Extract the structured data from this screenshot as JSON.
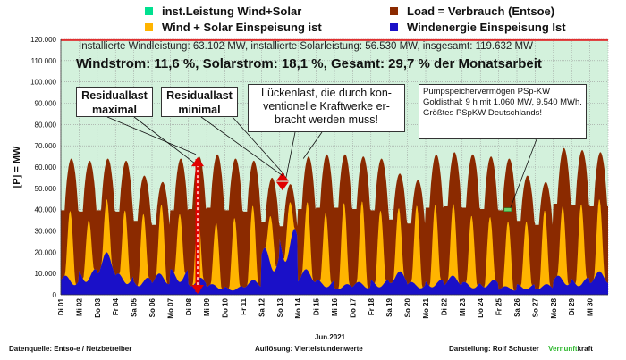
{
  "legend": {
    "items": [
      {
        "label": "inst.Leistung Wind+Solar",
        "color": "#00e090"
      },
      {
        "label": "Load =  Verbrauch (Entsoe)",
        "color": "#8b2a00"
      },
      {
        "label": "Wind + Solar Einspeisung ist",
        "color": "#ffb400"
      },
      {
        "label": "Windenergie Einspeisung Ist",
        "color": "#1a10c8"
      }
    ]
  },
  "header": {
    "line1": "Installierte Windleistung: 63.102 MW, installierte Solarleistung: 56.530 MW, insgesamt: 119.632 MW",
    "line2": "Windstrom: 11,6 %, Solarstrom: 18,1 %, Gesamt: 29,7 % der Monatsarbeit"
  },
  "annotations": {
    "residual_max": "Residuallast maximal",
    "residual_min": "Residuallast minimal",
    "lueckenlast": "Lückenlast, die durch kon-ventionelle Kraftwerke er-bracht werden muss!",
    "psp": "Pumpspeichervermögen PSp-KW Goldisthal: 9 h mit 1.060 MW, 9.540 MWh. Größtes PSpKW Deutschlands!"
  },
  "footer": {
    "source": "Datenquelle:  Entso-e  / Netzbetreiber",
    "resolution": "Auflösung: Viertelstundenwerte",
    "author": "Darstellung:  Rolf Schuster",
    "brand_a": "Vernunft",
    "brand_b": "kraft",
    "brand_color": "#2eb82e"
  },
  "chart_data": {
    "type": "area",
    "title": "",
    "ylabel": "[P] = MW",
    "xlabel": "Jun.2021",
    "ylim": [
      0,
      120000
    ],
    "yticks": [
      0,
      10000,
      20000,
      30000,
      40000,
      50000,
      60000,
      70000,
      80000,
      90000,
      100000,
      110000,
      120000
    ],
    "ytick_labels": [
      "0",
      "10.000",
      "20.000",
      "30.000",
      "40.000",
      "50.000",
      "60.000",
      "70.000",
      "80.000",
      "90.000",
      "100.000",
      "110.000",
      "120.000"
    ],
    "x_ticks": [
      "Di 01",
      "Mi 02",
      "Do 03",
      "Fr 04",
      "Sa 05",
      "So 06",
      "Mo 07",
      "Di 08",
      "Mi 09",
      "Do 10",
      "Fr 11",
      "Sa 12",
      "So 13",
      "Mo 14",
      "Di 15",
      "Mi 16",
      "Do 17",
      "Fr 18",
      "Sa 19",
      "So 20",
      "Mo 21",
      "Di 22",
      "Mi 23",
      "Do 24",
      "Fr 25",
      "Sa 26",
      "So 27",
      "Mo 28",
      "Di 29",
      "Mi 30"
    ],
    "x": [
      "01",
      "02",
      "03",
      "04",
      "05",
      "06",
      "07",
      "08",
      "09",
      "10",
      "11",
      "12",
      "13",
      "14",
      "15",
      "16",
      "17",
      "18",
      "19",
      "20",
      "21",
      "22",
      "23",
      "24",
      "25",
      "26",
      "27",
      "28",
      "29",
      "30"
    ],
    "grid": true,
    "series": [
      {
        "name": "inst.Leistung Wind+Solar",
        "values": [
          119632,
          119632,
          119632,
          119632,
          119632,
          119632,
          119632,
          119632,
          119632,
          119632,
          119632,
          119632,
          119632,
          119632,
          119632,
          119632,
          119632,
          119632,
          119632,
          119632,
          119632,
          119632,
          119632,
          119632,
          119632,
          119632,
          119632,
          119632,
          119632,
          119632
        ]
      },
      {
        "name": "Load =  Verbrauch (Entsoe)",
        "values": [
          64000,
          63000,
          64000,
          63000,
          56000,
          53000,
          64000,
          65000,
          66000,
          64000,
          63000,
          55000,
          52000,
          65000,
          66000,
          66000,
          65000,
          64000,
          57000,
          54000,
          66000,
          67000,
          66000,
          65000,
          64000,
          56000,
          53000,
          69000,
          68000,
          67000
        ]
      },
      {
        "name": "Wind + Solar Einspeisung ist",
        "values": [
          42000,
          40000,
          45000,
          44000,
          40000,
          43000,
          44000,
          38000,
          35000,
          38000,
          42000,
          45000,
          52000,
          44000,
          42000,
          44000,
          45000,
          43000,
          41000,
          44000,
          45000,
          43000,
          40000,
          38000,
          35000,
          37000,
          40000,
          44000,
          46000,
          45000
        ]
      },
      {
        "name": "Windenergie Einspeisung Ist",
        "values": [
          9000,
          12000,
          20000,
          10000,
          8000,
          10000,
          12000,
          8000,
          5000,
          4000,
          7000,
          22000,
          31000,
          12000,
          7000,
          5000,
          6000,
          7000,
          11000,
          6000,
          7000,
          9000,
          6000,
          7000,
          4000,
          5000,
          5000,
          9000,
          8000,
          11000
        ]
      }
    ]
  }
}
